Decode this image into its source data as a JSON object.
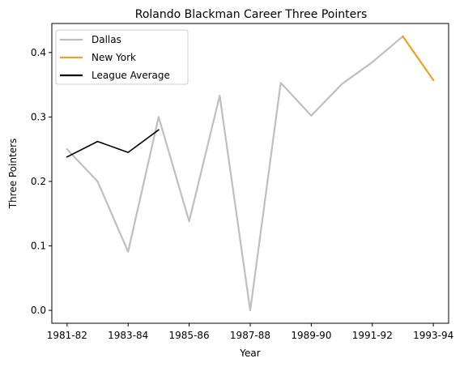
{
  "chart_data": {
    "type": "line",
    "title": "Rolando Blackman Career Three Pointers",
    "xlabel": "Year",
    "ylabel": "Three Pointers",
    "x": [
      "1981-82",
      "1982-83",
      "1983-84",
      "1984-85",
      "1985-86",
      "1986-87",
      "1987-88",
      "1988-89",
      "1989-90",
      "1990-91",
      "1991-92",
      "1992-93",
      "1993-94"
    ],
    "xticks": [
      "1981-82",
      "1983-84",
      "1985-86",
      "1987-88",
      "1989-90",
      "1991-92",
      "1993-94"
    ],
    "ylim": [
      -0.02,
      0.445
    ],
    "yticks": [
      0.0,
      0.1,
      0.2,
      0.3,
      0.4
    ],
    "grid": false,
    "legend_position": "top-left",
    "series": [
      {
        "name": "Dallas",
        "color": "#bfbfbf",
        "values": [
          0.25,
          0.2,
          0.091,
          0.3,
          0.138,
          0.333,
          0.0,
          0.353,
          0.302,
          0.351,
          0.385,
          0.425,
          null
        ]
      },
      {
        "name": "New York",
        "color": "#f5a01f",
        "values": [
          null,
          null,
          null,
          null,
          null,
          null,
          null,
          null,
          null,
          null,
          null,
          0.425,
          0.357
        ]
      },
      {
        "name": "League Average",
        "color": "#000000",
        "values": [
          0.238,
          0.262,
          0.245,
          0.28,
          null,
          null,
          null,
          null,
          null,
          null,
          null,
          null,
          null
        ]
      }
    ]
  }
}
